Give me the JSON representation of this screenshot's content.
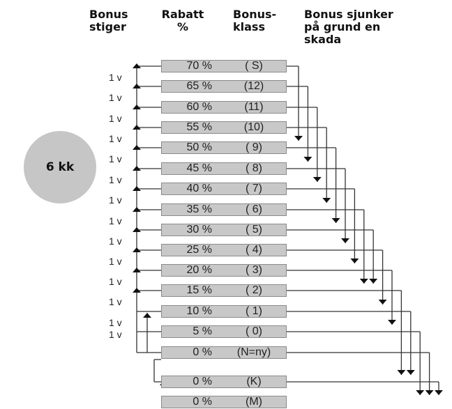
{
  "headers": {
    "stiger": "Bonus\nstiger",
    "rabatt": "Rabatt\n%",
    "klass": "Bonus-\nklass",
    "sjunker": "Bonus sjunker\npå grund en\nskada"
  },
  "circle_label": "6 kk",
  "step_label": "1 v",
  "rows": [
    {
      "rabatt": "70 %",
      "klass": "( S)"
    },
    {
      "rabatt": "65 %",
      "klass": "(12)"
    },
    {
      "rabatt": "60 %",
      "klass": "(11)"
    },
    {
      "rabatt": "55 %",
      "klass": "(10)"
    },
    {
      "rabatt": "50 %",
      "klass": "( 9)"
    },
    {
      "rabatt": "45 %",
      "klass": "( 8)"
    },
    {
      "rabatt": "40 %",
      "klass": "( 7)"
    },
    {
      "rabatt": "35 %",
      "klass": "( 6)"
    },
    {
      "rabatt": "30 %",
      "klass": "( 5)"
    },
    {
      "rabatt": "25 %",
      "klass": "( 4)"
    },
    {
      "rabatt": "20 %",
      "klass": "( 3)"
    },
    {
      "rabatt": "15 %",
      "klass": "( 2)"
    },
    {
      "rabatt": "10 %",
      "klass": "( 1)"
    },
    {
      "rabatt": "5 %",
      "klass": "( 0)"
    },
    {
      "rabatt": "0 %",
      "klass": "(N=ny)"
    },
    {
      "rabatt": "0 %",
      "klass": "(K)"
    },
    {
      "rabatt": "0 %",
      "klass": "(M)"
    }
  ],
  "drops": [
    {
      "from": 0,
      "to": 4
    },
    {
      "from": 1,
      "to": 5
    },
    {
      "from": 2,
      "to": 6
    },
    {
      "from": 3,
      "to": 7
    },
    {
      "from": 4,
      "to": 8
    },
    {
      "from": 5,
      "to": 9
    },
    {
      "from": 6,
      "to": 10
    },
    {
      "from": 7,
      "to": 11
    },
    {
      "from": 8,
      "to": 11
    },
    {
      "from": 9,
      "to": 12
    },
    {
      "from": 10,
      "to": 13
    },
    {
      "from": 11,
      "to": 15
    },
    {
      "from": 12,
      "to": 15
    },
    {
      "from": 13,
      "to": 16
    },
    {
      "from": 14,
      "to": 16
    },
    {
      "from": 15,
      "to": 16
    }
  ]
}
